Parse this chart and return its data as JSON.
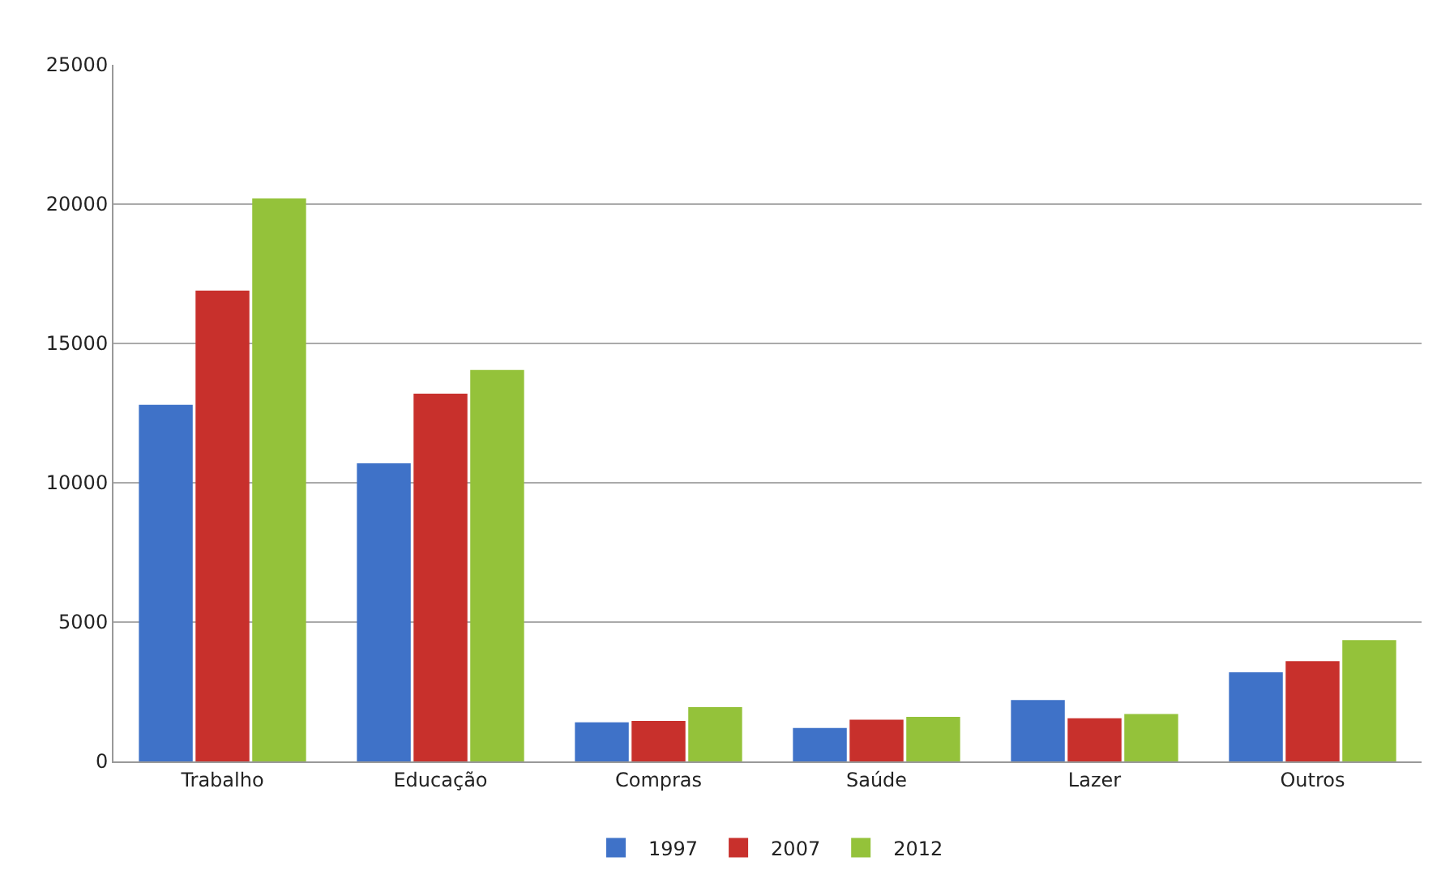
{
  "chart_data": {
    "type": "bar",
    "categories": [
      "Trabalho",
      "Educação",
      "Compras",
      "Saúde",
      "Lazer",
      "Outros"
    ],
    "series": [
      {
        "name": "1997",
        "color": "#3f72c8",
        "values": [
          12800,
          10700,
          1400,
          1200,
          2200,
          3200
        ]
      },
      {
        "name": "2007",
        "color": "#c8302c",
        "values": [
          16900,
          13200,
          1450,
          1500,
          1550,
          3600
        ]
      },
      {
        "name": "2012",
        "color": "#94c23a",
        "values": [
          20200,
          14050,
          1950,
          1600,
          1700,
          4350
        ]
      }
    ],
    "ylim": [
      0,
      25000
    ],
    "yticks": [
      0,
      5000,
      10000,
      15000,
      20000,
      25000
    ],
    "grid": "y",
    "legend": "bottom"
  }
}
